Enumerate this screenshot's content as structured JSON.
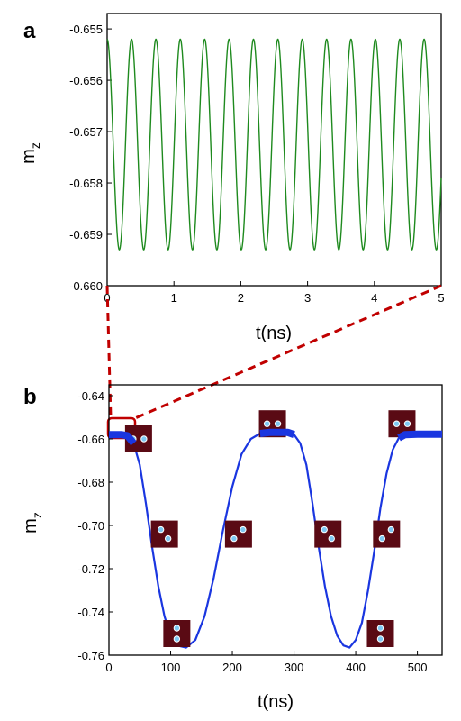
{
  "chart_data": [
    {
      "panel": "a",
      "type": "line",
      "xlabel": "t(ns)",
      "ylabel": "m",
      "ylabel_sub": "z",
      "xlim": [
        0,
        5
      ],
      "ylim": [
        -0.66,
        -0.6547
      ],
      "x_ticks": [
        "0",
        "1",
        "2",
        "3",
        "4",
        "5"
      ],
      "y_ticks": [
        "-0.660",
        "-0.659",
        "-0.658",
        "-0.657",
        "-0.656",
        "-0.655"
      ],
      "x_tick_values": [
        0,
        1,
        2,
        3,
        4,
        5
      ],
      "y_tick_values": [
        -0.66,
        -0.659,
        -0.658,
        -0.657,
        -0.656,
        -0.655
      ],
      "grid": false,
      "series": [
        {
          "color": "#1e8a1e",
          "oscillation": {
            "period_ns": 0.365,
            "y_max": -0.6552,
            "y_min": -0.6593,
            "start_value": -0.6552
          }
        }
      ]
    },
    {
      "panel": "b",
      "type": "line",
      "xlabel": "t(ns)",
      "ylabel": "m",
      "ylabel_sub": "z",
      "xlim": [
        0,
        540
      ],
      "ylim": [
        -0.76,
        -0.635
      ],
      "x_ticks": [
        "0",
        "100",
        "200",
        "300",
        "400",
        "500"
      ],
      "y_ticks": [
        "-0.64",
        "-0.66",
        "-0.68",
        "-0.70",
        "-0.72",
        "-0.74",
        "-0.76"
      ],
      "x_tick_values": [
        0,
        100,
        200,
        300,
        400,
        500
      ],
      "y_tick_values": [
        -0.64,
        -0.66,
        -0.68,
        -0.7,
        -0.72,
        -0.74,
        -0.76
      ],
      "grid": false,
      "series": [
        {
          "color": "#1a36e0",
          "points": [
            {
              "x": 0,
              "y": -0.658
            },
            {
              "x": 20,
              "y": -0.658
            },
            {
              "x": 30,
              "y": -0.6585
            },
            {
              "x": 40,
              "y": -0.662
            },
            {
              "x": 50,
              "y": -0.672
            },
            {
              "x": 60,
              "y": -0.69
            },
            {
              "x": 70,
              "y": -0.71
            },
            {
              "x": 80,
              "y": -0.728
            },
            {
              "x": 90,
              "y": -0.742
            },
            {
              "x": 100,
              "y": -0.751
            },
            {
              "x": 110,
              "y": -0.7555
            },
            {
              "x": 125,
              "y": -0.7565
            },
            {
              "x": 140,
              "y": -0.753
            },
            {
              "x": 155,
              "y": -0.742
            },
            {
              "x": 170,
              "y": -0.724
            },
            {
              "x": 185,
              "y": -0.702
            },
            {
              "x": 200,
              "y": -0.682
            },
            {
              "x": 215,
              "y": -0.667
            },
            {
              "x": 230,
              "y": -0.66
            },
            {
              "x": 245,
              "y": -0.6575
            },
            {
              "x": 260,
              "y": -0.657
            },
            {
              "x": 290,
              "y": -0.657
            },
            {
              "x": 300,
              "y": -0.658
            },
            {
              "x": 310,
              "y": -0.662
            },
            {
              "x": 320,
              "y": -0.672
            },
            {
              "x": 330,
              "y": -0.69
            },
            {
              "x": 340,
              "y": -0.71
            },
            {
              "x": 350,
              "y": -0.728
            },
            {
              "x": 360,
              "y": -0.742
            },
            {
              "x": 370,
              "y": -0.751
            },
            {
              "x": 380,
              "y": -0.7555
            },
            {
              "x": 390,
              "y": -0.7565
            },
            {
              "x": 400,
              "y": -0.753
            },
            {
              "x": 410,
              "y": -0.745
            },
            {
              "x": 420,
              "y": -0.73
            },
            {
              "x": 430,
              "y": -0.712
            },
            {
              "x": 440,
              "y": -0.692
            },
            {
              "x": 450,
              "y": -0.676
            },
            {
              "x": 460,
              "y": -0.665
            },
            {
              "x": 470,
              "y": -0.6595
            },
            {
              "x": 480,
              "y": -0.658
            },
            {
              "x": 500,
              "y": -0.6578
            },
            {
              "x": 540,
              "y": -0.6578
            }
          ]
        }
      ],
      "insets": [
        {
          "x": 48,
          "y": -0.66,
          "dots": "horizontal"
        },
        {
          "x": 90,
          "y": -0.704,
          "dots": "diagonal"
        },
        {
          "x": 110,
          "y": -0.75,
          "dots": "vertical"
        },
        {
          "x": 210,
          "y": -0.704,
          "dots": "diagonal-flip"
        },
        {
          "x": 265,
          "y": -0.653,
          "dots": "horizontal"
        },
        {
          "x": 355,
          "y": -0.704,
          "dots": "diagonal"
        },
        {
          "x": 440,
          "y": -0.75,
          "dots": "vertical"
        },
        {
          "x": 450,
          "y": -0.704,
          "dots": "diagonal-flip"
        },
        {
          "x": 475,
          "y": -0.653,
          "dots": "horizontal"
        }
      ]
    }
  ],
  "panel_labels": [
    "a",
    "b"
  ],
  "zoom_indicator": {
    "color": "#c00000"
  },
  "inset_colors": {
    "background": "#5a0a14",
    "dot_fill": "#7ec8f2",
    "dot_ring": "#ffffff"
  }
}
